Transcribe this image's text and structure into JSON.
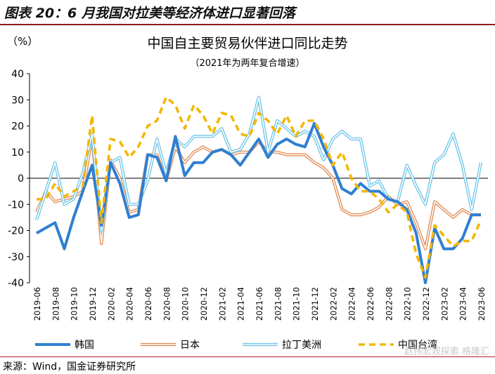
{
  "figure": {
    "label": "图表 20：6 月我国对拉美等经济体进口显著回落",
    "source": "来源：Wind，国金证券研究所",
    "watermark": "赵伟宏观探索  格隆汇"
  },
  "chart_data": {
    "type": "line",
    "title": "中国自主要贸易伙伴进口同比走势",
    "subtitle": "（2021年为两年复合增速）",
    "ylabel": "（%）",
    "ylim": [
      -40,
      40
    ],
    "yticks": [
      40,
      30,
      20,
      10,
      0,
      -10,
      -20,
      -30,
      -40
    ],
    "grid": false,
    "legend_position": "bottom",
    "x": [
      "2019-06",
      "2019-07",
      "2019-08",
      "2019-09",
      "2019-10",
      "2019-11",
      "2019-12",
      "2020-01",
      "2020-02",
      "2020-03",
      "2020-04",
      "2020-05",
      "2020-06",
      "2020-07",
      "2020-08",
      "2020-09",
      "2020-10",
      "2020-11",
      "2020-12",
      "2021-01",
      "2021-02",
      "2021-03",
      "2021-04",
      "2021-05",
      "2021-06",
      "2021-07",
      "2021-08",
      "2021-09",
      "2021-10",
      "2021-11",
      "2021-12",
      "2022-01",
      "2022-02",
      "2022-03",
      "2022-04",
      "2022-05",
      "2022-06",
      "2022-07",
      "2022-08",
      "2022-09",
      "2022-10",
      "2022-11",
      "2022-12",
      "2023-01",
      "2023-02",
      "2023-03",
      "2023-04",
      "2023-05",
      "2023-06"
    ],
    "xtick_labels": [
      "2019-06",
      "2019-08",
      "2019-10",
      "2019-12",
      "2020-02",
      "2020-04",
      "2020-06",
      "2020-08",
      "2020-10",
      "2020-12",
      "2021-02",
      "2021-04",
      "2021-06",
      "2021-08",
      "2021-10",
      "2021-12",
      "2022-02",
      "2022-04",
      "2022-06",
      "2022-08",
      "2022-10",
      "2022-12",
      "2023-02",
      "2023-04",
      "2023-06"
    ],
    "series": [
      {
        "name": "韩国",
        "color": "#2f7fd2",
        "style": "solid-thick",
        "values": [
          -21,
          -19,
          -17,
          -27,
          -15,
          -5,
          5,
          -18,
          6,
          -2,
          -15,
          -14,
          9,
          8,
          -1,
          16,
          1,
          6,
          6,
          10,
          11,
          9,
          5,
          10,
          15,
          8,
          13,
          15,
          13,
          12,
          21,
          12,
          5,
          -4,
          -6,
          -2,
          -5,
          -5,
          -8,
          -9,
          -12,
          -21,
          -40,
          -19,
          -27,
          -27,
          -23,
          -14,
          -14
        ],
        "_": ""
      },
      {
        "name": "日本",
        "color": "#e08a50",
        "style": "solid-double",
        "values": [
          -13,
          -5,
          -9,
          -8,
          -7,
          -5,
          16,
          -25,
          7,
          0,
          -13,
          -12,
          9,
          9,
          -1,
          12,
          6,
          10,
          12,
          10,
          11,
          9,
          10,
          10,
          14,
          10,
          10,
          9,
          9,
          9,
          6,
          4,
          0,
          -12,
          -14,
          -14,
          -13,
          -11,
          -7,
          -10,
          -9,
          -17,
          -27,
          -9,
          -12,
          -15,
          -12,
          -14,
          -14
        ],
        "_": ""
      },
      {
        "name": "拉丁美洲",
        "color": "#6ec5e8",
        "style": "solid-double",
        "values": [
          -16,
          -5,
          6,
          -10,
          -8,
          2,
          17,
          -20,
          6,
          8,
          -10,
          -10,
          -1,
          15,
          2,
          15,
          12,
          16,
          16,
          16,
          19,
          10,
          11,
          17,
          31,
          10,
          22,
          19,
          16,
          18,
          16,
          7,
          15,
          18,
          15,
          15,
          -3,
          -1,
          -8,
          -9,
          5,
          -3,
          -10,
          6,
          9,
          17,
          5,
          -12,
          6
        ],
        "_": ""
      },
      {
        "name": "中国台湾",
        "color": "#f2b705",
        "style": "dashed-thick",
        "values": [
          -8,
          -8,
          -2,
          -7,
          -5,
          -3,
          24,
          -17,
          15,
          14,
          8,
          12,
          20,
          22,
          31,
          28,
          19,
          28,
          24,
          17,
          25,
          24,
          17,
          16,
          25,
          22,
          17,
          24,
          16,
          22,
          22,
          15,
          5,
          10,
          0,
          -5,
          -5,
          -8,
          -13,
          -10,
          -13,
          -29,
          -38,
          -18,
          -22,
          -26,
          -24,
          -24,
          -16
        ],
        "_": ""
      }
    ]
  }
}
